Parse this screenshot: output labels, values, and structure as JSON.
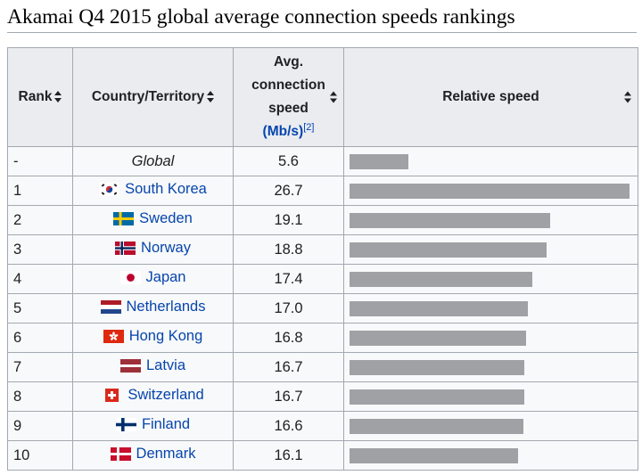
{
  "title": "Akamai Q4 2015 global average connection speeds rankings",
  "table": {
    "headers": {
      "rank": "Rank",
      "country": "Country/Territory",
      "speed_lines": [
        "Avg.",
        "connection",
        "speed"
      ],
      "speed_unit": "(Mb/s)",
      "speed_ref": "[2]",
      "relative": "Relative speed"
    },
    "max_speed": 26.7,
    "rows": [
      {
        "rank": "-",
        "country": "Global",
        "speed": "5.6",
        "value": 5.6,
        "flag": "none"
      },
      {
        "rank": "1",
        "country": "South Korea",
        "speed": "26.7",
        "value": 26.7,
        "flag": "south-korea"
      },
      {
        "rank": "2",
        "country": "Sweden",
        "speed": "19.1",
        "value": 19.1,
        "flag": "sweden"
      },
      {
        "rank": "3",
        "country": "Norway",
        "speed": "18.8",
        "value": 18.8,
        "flag": "norway"
      },
      {
        "rank": "4",
        "country": "Japan",
        "speed": "17.4",
        "value": 17.4,
        "flag": "japan"
      },
      {
        "rank": "5",
        "country": "Netherlands",
        "speed": "17.0",
        "value": 17.0,
        "flag": "netherlands"
      },
      {
        "rank": "6",
        "country": "Hong Kong",
        "speed": "16.8",
        "value": 16.8,
        "flag": "hong-kong"
      },
      {
        "rank": "7",
        "country": "Latvia",
        "speed": "16.7",
        "value": 16.7,
        "flag": "latvia"
      },
      {
        "rank": "8",
        "country": "Switzerland",
        "speed": "16.7",
        "value": 16.7,
        "flag": "switzerland"
      },
      {
        "rank": "9",
        "country": "Finland",
        "speed": "16.6",
        "value": 16.6,
        "flag": "finland"
      },
      {
        "rank": "10",
        "country": "Denmark",
        "speed": "16.1",
        "value": 16.1,
        "flag": "denmark"
      }
    ]
  },
  "colors": {
    "bar": "#a0a1a4",
    "link": "#0645ad",
    "header_bg": "#eaecf0",
    "border": "#a2a9b1"
  }
}
